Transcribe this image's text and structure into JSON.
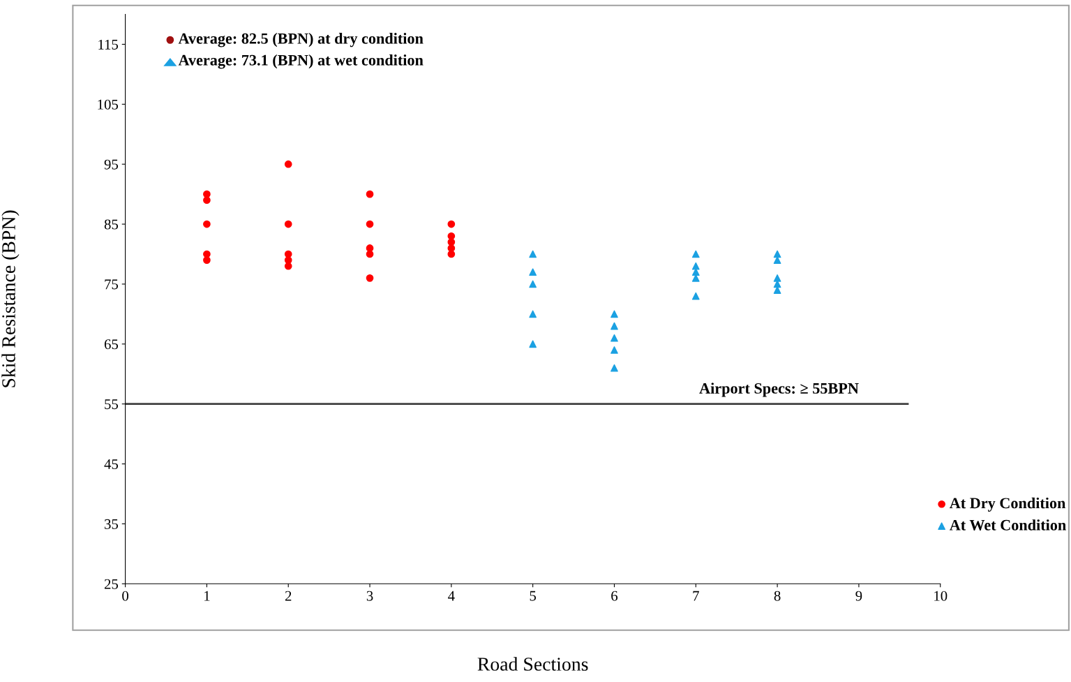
{
  "chart_data": {
    "type": "scatter",
    "xlabel": "Road Sections",
    "ylabel": "Skid Resistance (BPN)",
    "series": [
      {
        "name": "At Dry Condition",
        "color": "#ff0000",
        "marker": "circle",
        "x": [
          1,
          1,
          1,
          1,
          1,
          2,
          2,
          2,
          2,
          2,
          3,
          3,
          3,
          3,
          3,
          4,
          4,
          4,
          4,
          4
        ],
        "values": [
          90,
          89,
          85,
          80,
          79,
          95,
          85,
          80,
          79,
          78,
          90,
          85,
          81,
          80,
          76,
          85,
          83,
          82,
          81,
          80
        ]
      },
      {
        "name": "At Wet Condition",
        "color": "#1ba1e2",
        "marker": "triangle",
        "x": [
          5,
          5,
          5,
          5,
          5,
          6,
          6,
          6,
          6,
          6,
          7,
          7,
          7,
          7,
          7,
          8,
          8,
          8,
          8,
          8
        ],
        "values": [
          80,
          77,
          75,
          70,
          65,
          70,
          68,
          66,
          64,
          61,
          80,
          78,
          77,
          76,
          73,
          80,
          79,
          76,
          75,
          74
        ]
      }
    ],
    "annotations": [
      "Average: 82.5 (BPN) at dry condition",
      "Average: 73.1 (BPN) at wet condition"
    ],
    "ref_lines": [
      {
        "axis": "y",
        "value": 55,
        "label": "Airport Specs: ≥ 55BPN",
        "color": "#404040"
      }
    ],
    "xlim": [
      0,
      10
    ],
    "ylim": [
      25,
      120
    ],
    "xticks": [
      0,
      1,
      2,
      3,
      4,
      5,
      6,
      7,
      8,
      9,
      10
    ],
    "yticks": [
      25,
      35,
      45,
      55,
      65,
      75,
      85,
      95,
      105,
      115
    ],
    "grid": false,
    "legend": "right"
  }
}
